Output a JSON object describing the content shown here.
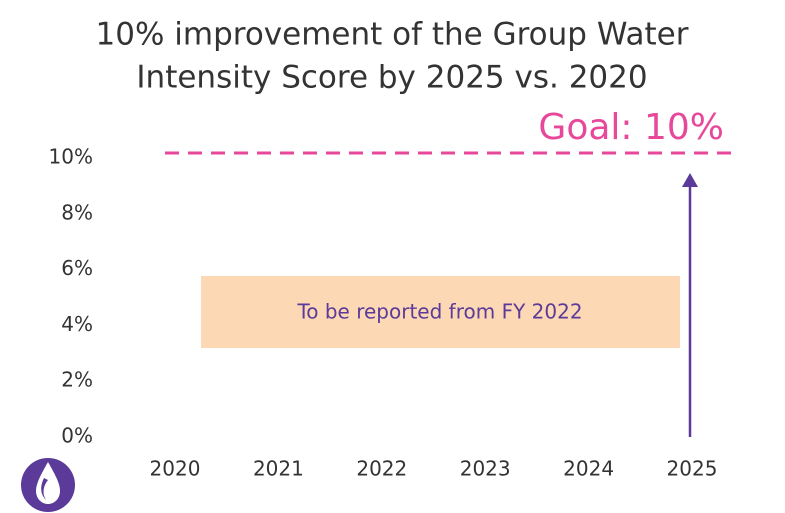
{
  "chart_data": {
    "type": "goal",
    "title": [
      "10% improvement of the Group Water",
      "Intensity Score by 2025 vs. 2020"
    ],
    "categories": [
      "2020",
      "2021",
      "2022",
      "2023",
      "2024",
      "2025"
    ],
    "ylim": [
      0,
      10
    ],
    "yticks": [
      {
        "value": 0,
        "label": "0%"
      },
      {
        "value": 2,
        "label": "2%"
      },
      {
        "value": 4,
        "label": "4%"
      },
      {
        "value": 6,
        "label": "6%"
      },
      {
        "value": 8,
        "label": "8%"
      },
      {
        "value": 10,
        "label": "10%"
      }
    ],
    "goal": {
      "value": 10,
      "label": "Goal: 10%",
      "color": "#e8489a"
    },
    "annotation": "To be reported from FY 2022"
  }
}
